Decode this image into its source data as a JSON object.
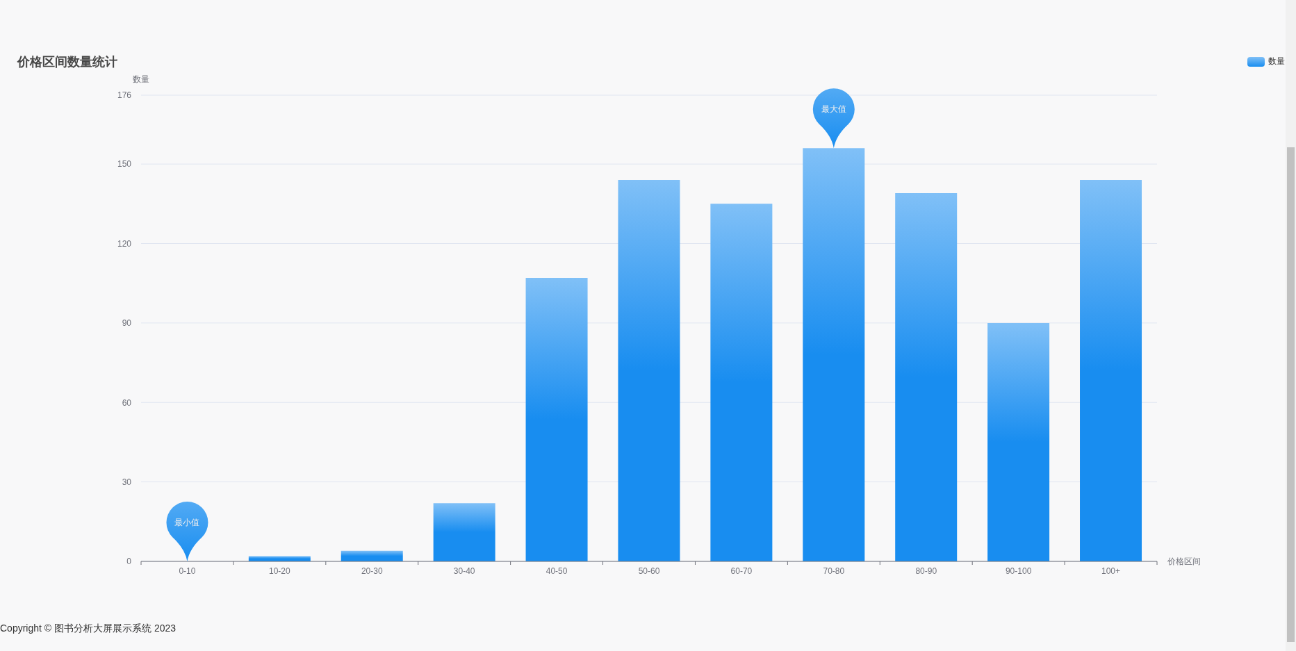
{
  "chart_data": {
    "type": "bar",
    "title": "价格区间数量统计",
    "xlabel": "价格区间",
    "ylabel": "数量",
    "categories": [
      "0-10",
      "10-20",
      "20-30",
      "30-40",
      "40-50",
      "50-60",
      "60-70",
      "70-80",
      "80-90",
      "90-100",
      "100+"
    ],
    "series": [
      {
        "name": "数量",
        "color": "#188df0",
        "values": [
          0,
          2,
          4,
          22,
          107,
          144,
          135,
          156,
          139,
          90,
          144
        ]
      }
    ],
    "ylim": [
      0,
      176
    ],
    "yticks": [
      0,
      30,
      60,
      90,
      120,
      150,
      176
    ],
    "grid": "y",
    "legend": "top right",
    "annotations": [
      "最小值",
      "最大值",
      "Copyright © 图书分析大屏展示系统 2023"
    ]
  }
}
